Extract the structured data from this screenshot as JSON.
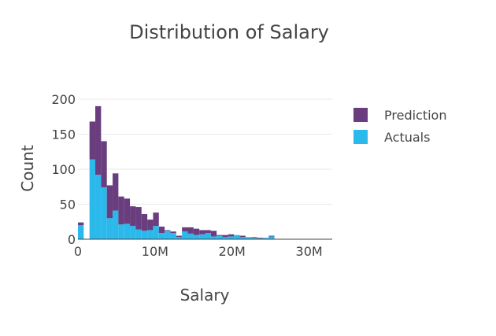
{
  "chart_data": {
    "type": "bar",
    "title": "Distribution of Salary",
    "xlabel": "Salary",
    "ylabel": "Count",
    "xlim": [
      0,
      33000000
    ],
    "ylim": [
      0,
      200
    ],
    "bin_width": 750000,
    "bin_start": 0,
    "x_ticks": [
      {
        "value": 0,
        "label": "0"
      },
      {
        "value": 10000000,
        "label": "10M"
      },
      {
        "value": 20000000,
        "label": "20M"
      },
      {
        "value": 30000000,
        "label": "30M"
      }
    ],
    "y_ticks": [
      {
        "value": 0,
        "label": "0"
      },
      {
        "value": 50,
        "label": "50"
      },
      {
        "value": 100,
        "label": "100"
      },
      {
        "value": 150,
        "label": "150"
      },
      {
        "value": 200,
        "label": "200"
      }
    ],
    "stacked": true,
    "grid": true,
    "legend_position": "top-right",
    "series": [
      {
        "name": "Actuals",
        "color": "#2bb9ec",
        "values": [
          20,
          0,
          114,
          92,
          74,
          30,
          41,
          21,
          22,
          19,
          14,
          12,
          13,
          19,
          9,
          12,
          9,
          3,
          11,
          8,
          6,
          7,
          9,
          4,
          5,
          3,
          4,
          6,
          3,
          3,
          2,
          1,
          2,
          4
        ]
      },
      {
        "name": "Prediction",
        "color": "#6a3d7f",
        "values": [
          4,
          0,
          54,
          98,
          66,
          47,
          53,
          40,
          36,
          28,
          32,
          24,
          15,
          19,
          9,
          1,
          2,
          2,
          6,
          9,
          9,
          6,
          4,
          8,
          1,
          3,
          3,
          0,
          2,
          0,
          1,
          1,
          0,
          1
        ]
      }
    ]
  }
}
